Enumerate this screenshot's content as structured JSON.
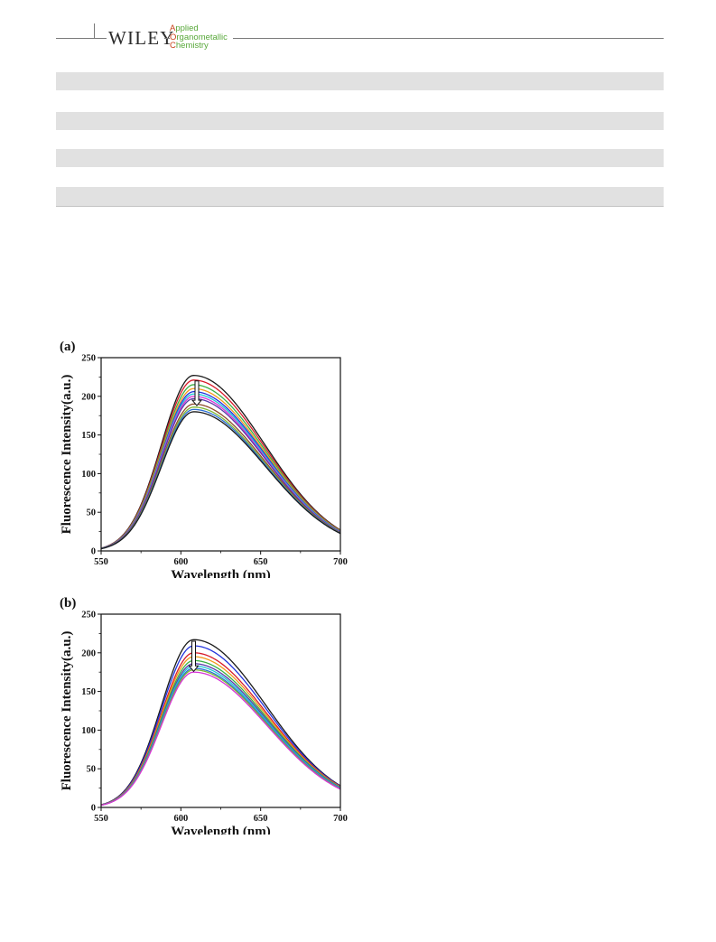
{
  "header": {
    "publisher": "WILEY",
    "journal_initials": [
      "A",
      "O",
      "C"
    ],
    "journal_rest": [
      "pplied",
      "rganometallic",
      "hemistry"
    ]
  },
  "chart_data": [
    {
      "type": "line",
      "panel_label": "(a)",
      "xlabel": "Wavelength (nm)",
      "ylabel": "Fluorescence Intensity(a.u.)",
      "xlim": [
        550,
        700
      ],
      "ylim": [
        0,
        250
      ],
      "xticks": [
        550,
        600,
        650,
        700
      ],
      "yticks": [
        0,
        50,
        100,
        150,
        200,
        250
      ],
      "grid": false,
      "arrow": {
        "direction": "down",
        "x": 610,
        "y_from": 220,
        "y_to": 188
      },
      "peak_wavelength": 608,
      "series": [
        {
          "color": "#1a1a1a",
          "peak": 227,
          "tail700": 27
        },
        {
          "color": "#d81b2a",
          "peak": 221,
          "tail700": 26.5
        },
        {
          "color": "#3cb043",
          "peak": 215,
          "tail700": 26
        },
        {
          "color": "#f29a1c",
          "peak": 210,
          "tail700": 25.5
        },
        {
          "color": "#2233dd",
          "peak": 206,
          "tail700": 25
        },
        {
          "color": "#1ec6d6",
          "peak": 203,
          "tail700": 24.5
        },
        {
          "color": "#d633d6",
          "peak": 200,
          "tail700": 24
        },
        {
          "color": "#5a3aa8",
          "peak": 197,
          "tail700": 23.8
        },
        {
          "color": "#8e4a2b",
          "peak": 190,
          "tail700": 23.5
        },
        {
          "color": "#7db633",
          "peak": 186,
          "tail700": 23
        },
        {
          "color": "#2b6fd6",
          "peak": 183,
          "tail700": 22.8
        },
        {
          "color": "#1a1a1a",
          "peak": 180,
          "tail700": 22.5
        }
      ]
    },
    {
      "type": "line",
      "panel_label": "(b)",
      "xlabel": "Wavelength (nm)",
      "ylabel": "Fluorescence Intensity(a.u.)",
      "xlim": [
        550,
        700
      ],
      "ylim": [
        0,
        250
      ],
      "xticks": [
        550,
        600,
        650,
        700
      ],
      "yticks": [
        0,
        50,
        100,
        150,
        200,
        250
      ],
      "grid": false,
      "arrow": {
        "direction": "down",
        "x": 608,
        "y_from": 215,
        "y_to": 176
      },
      "peak_wavelength": 608,
      "series": [
        {
          "color": "#1a1a1a",
          "peak": 217,
          "tail700": 28
        },
        {
          "color": "#2233dd",
          "peak": 209,
          "tail700": 27.5
        },
        {
          "color": "#d81b2a",
          "peak": 200,
          "tail700": 27
        },
        {
          "color": "#f29a1c",
          "peak": 195,
          "tail700": 26.5
        },
        {
          "color": "#3cb043",
          "peak": 190,
          "tail700": 26
        },
        {
          "color": "#5a3aa8",
          "peak": 186,
          "tail700": 25.5
        },
        {
          "color": "#1ec6d6",
          "peak": 183,
          "tail700": 25
        },
        {
          "color": "#2b6fd6",
          "peak": 180,
          "tail700": 24.5
        },
        {
          "color": "#7db633",
          "peak": 178,
          "tail700": 24
        },
        {
          "color": "#d633d6",
          "peak": 175,
          "tail700": 23.5
        }
      ]
    }
  ]
}
